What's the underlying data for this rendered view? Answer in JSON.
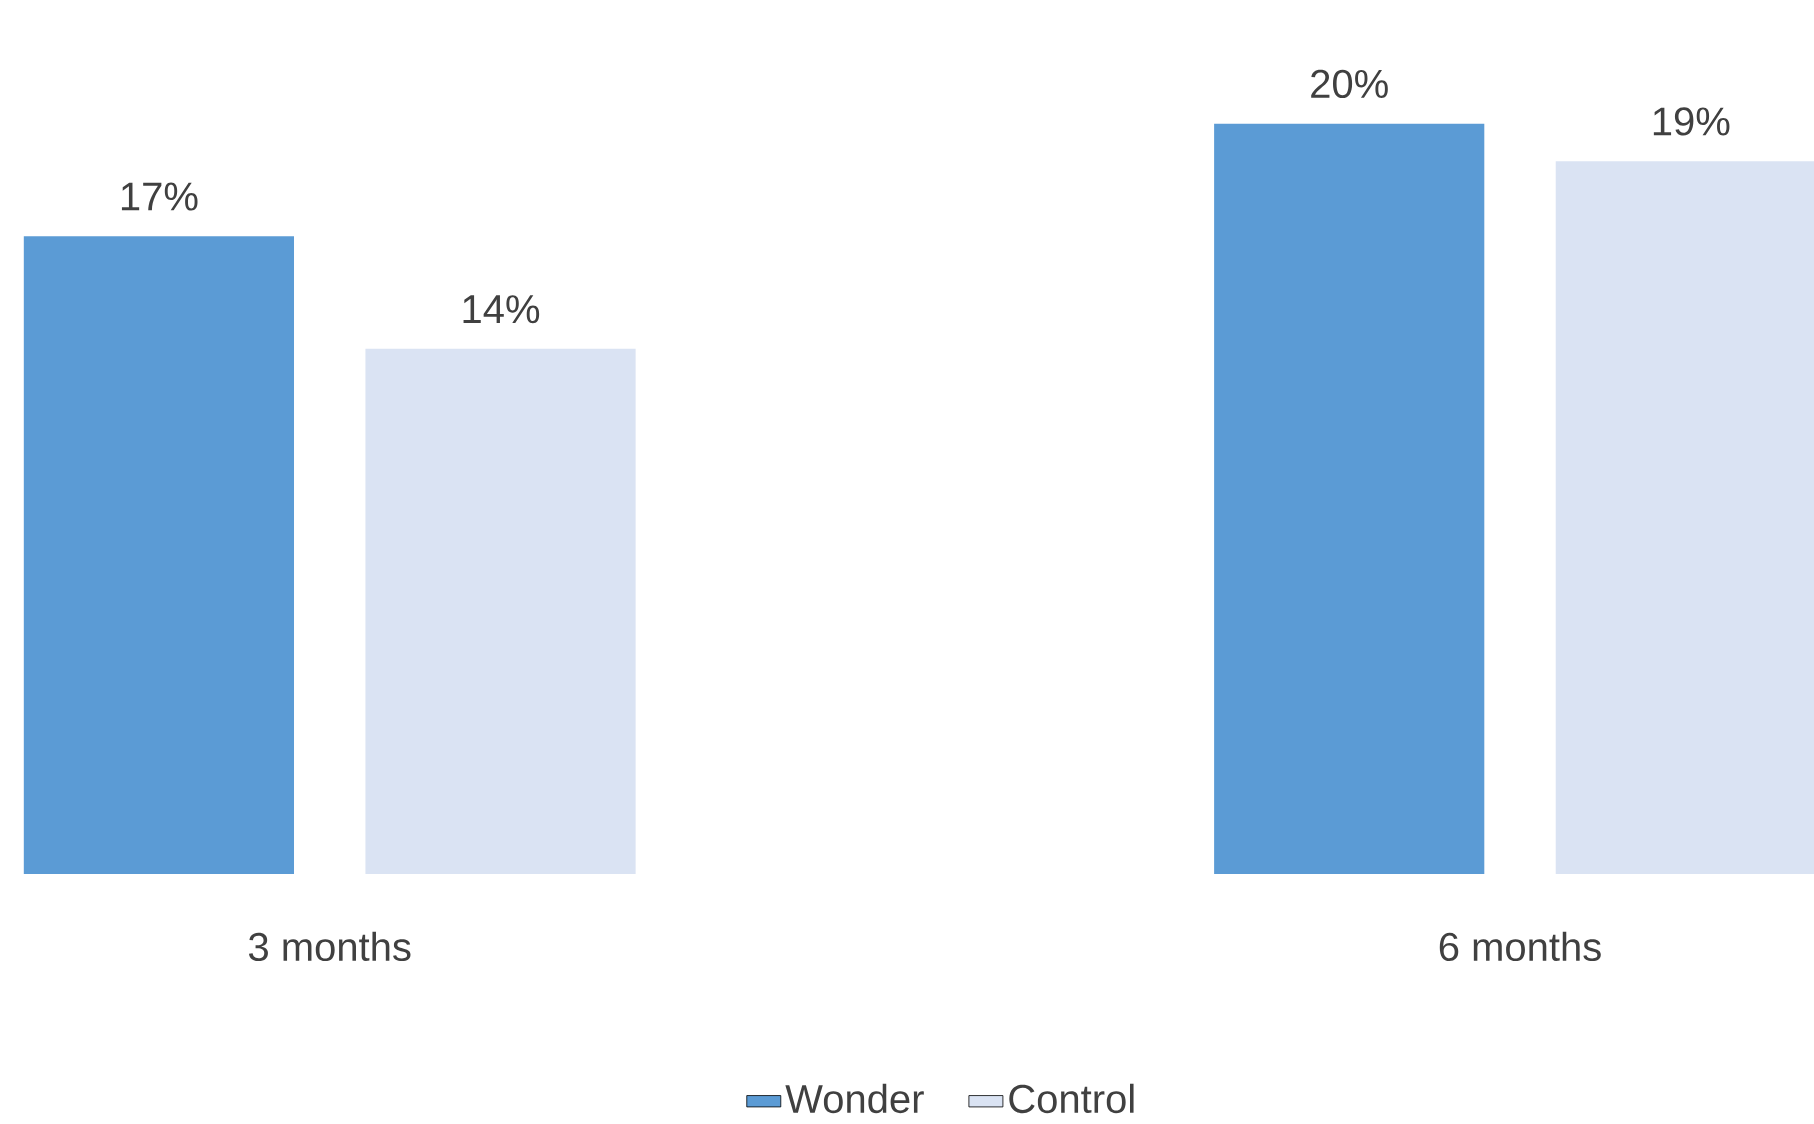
{
  "chart_data": {
    "type": "bar",
    "categories": [
      "3 months",
      "6 months"
    ],
    "series": [
      {
        "name": "Wonder",
        "color": "#5b9bd5",
        "values": [
          17,
          20
        ],
        "value_labels": [
          "17%",
          "20%"
        ]
      },
      {
        "name": "Control",
        "color": "#dae3f3",
        "values": [
          14,
          19
        ],
        "value_labels": [
          "14%",
          "19%"
        ]
      }
    ],
    "legend": "bottom"
  }
}
